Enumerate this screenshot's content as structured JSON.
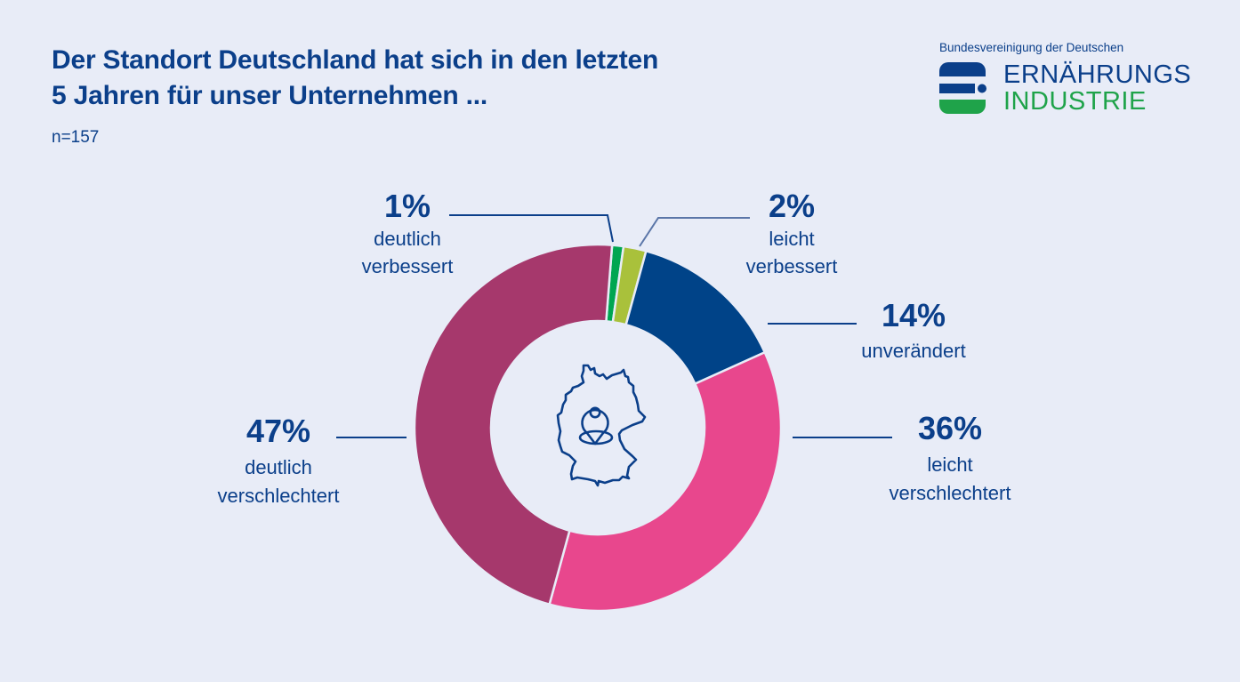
{
  "header": {
    "title_line1": "Der Standort Deutschland hat sich in den letzten",
    "title_line2": "5 Jahren für unser Unternehmen ...",
    "sample_size": "n=157"
  },
  "logo": {
    "subtitle": "Bundesvereinigung der Deutschen",
    "word1": "ERNÄHRUNGS",
    "word2": "INDUSTRIE",
    "colors": {
      "blue": "#0B3F8A",
      "green": "#1FA34A"
    }
  },
  "center_icon": "germany-map-location-pin-icon",
  "chart_data": {
    "type": "pie",
    "donut": true,
    "title": "Der Standort Deutschland hat sich in den letzten 5 Jahren für unser Unternehmen ...",
    "subtitle": "n=157",
    "unit": "%",
    "categories": [
      "deutlich verbessert",
      "leicht verbessert",
      "unverändert",
      "leicht verschlechtert",
      "deutlich verschlechtert"
    ],
    "values": [
      1,
      2,
      14,
      36,
      47
    ],
    "labels": [
      {
        "value_text": "1%",
        "line1": "deutlich",
        "line2": "verbessert"
      },
      {
        "value_text": "2%",
        "line1": "leicht",
        "line2": "verbessert"
      },
      {
        "value_text": "14%",
        "line1": "unverändert",
        "line2": ""
      },
      {
        "value_text": "36%",
        "line1": "leicht",
        "line2": "verschlechtert"
      },
      {
        "value_text": "47%",
        "line1": "deutlich",
        "line2": "verschlechtert"
      }
    ],
    "colors": [
      "#00A651",
      "#A9C13B",
      "#004388",
      "#E8478D",
      "#A6386C"
    ],
    "start": "near 12 o'clock, clockwise",
    "legend": "none"
  }
}
